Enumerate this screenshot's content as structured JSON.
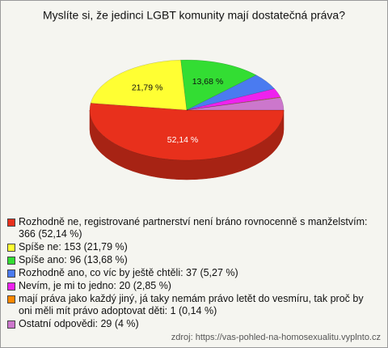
{
  "chart_data": {
    "type": "pie",
    "title": "Myslíte si, že jedinci LGBT komunity mají dostatečná práva?",
    "categories": [
      "Rozhodně ne, registrované partnerství není bráno rovnocenně s manželstvím: 366 (52,14 %)",
      "Spíše ne: 153 (21,79 %)",
      "Spíše ano: 96 (13,68 %)",
      "Rozhodně ano, co víc by ještě chtěli: 37 (5,27 %)",
      "Nevím, je mi to jedno: 20 (2,85 %)",
      "mají práva jako každý jiný, já taky nemám právo letět do vesmíru, tak proč by oni měli mít právo adoptovat děti: 1 (0,14 %)",
      "Ostatní odpovědi: 29 (4 %)"
    ],
    "values": [
      52.14,
      21.79,
      13.68,
      5.27,
      2.85,
      0.14,
      4
    ],
    "value_labels": [
      "52,14 %",
      "21,79 %",
      "13,68 %",
      null,
      null,
      null,
      null
    ],
    "colors": [
      "#e8301c",
      "#ffff33",
      "#33dd33",
      "#4a7bf0",
      "#ee22ee",
      "#ff8800",
      "#cc77cc"
    ],
    "source": "zdroj: https://vas-pohled-na-homosexualitu.vyplnto.cz"
  }
}
